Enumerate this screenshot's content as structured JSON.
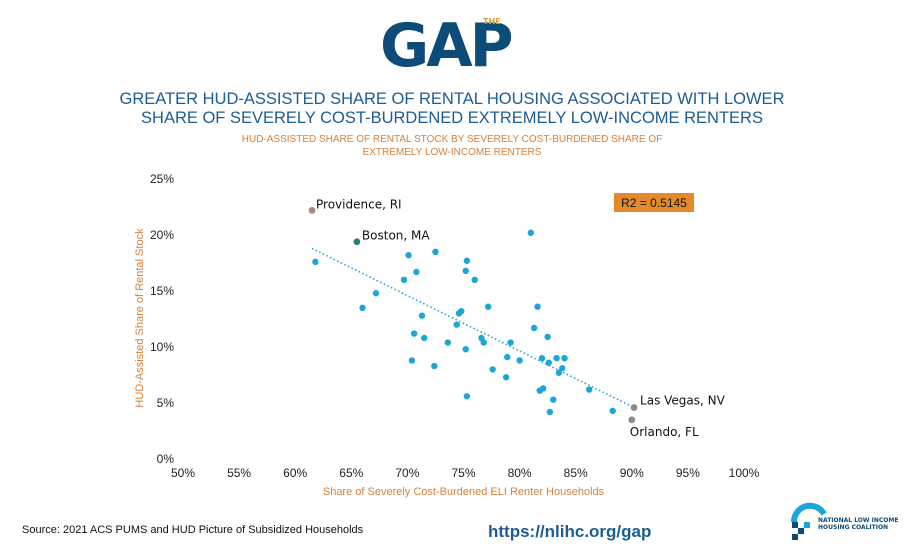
{
  "logo": {
    "text": "GAP",
    "small_text": "THE"
  },
  "header": {
    "title_line1": "GREATER HUD-ASSISTED SHARE OF RENTAL HOUSING ASSOCIATED WITH LOWER",
    "title_line2": "SHARE OF SEVERELY COST-BURDENED EXTREMELY LOW-INCOME RENTERS",
    "subtitle_line1": "HUD-ASSISTED SHARE OF RENTAL STOCK BY SEVERELY COST-BURDENED SHARE OF",
    "subtitle_line2": "EXTREMELY LOW-INCOME RENTERS"
  },
  "footer": {
    "source": "Source: 2021 ACS PUMS and HUD Picture of Subsidized Households",
    "url": "https://nlihc.org/gap",
    "org_line1": "NATIONAL LOW INCOME",
    "org_line2": "HOUSING COALITION"
  },
  "chart_data": {
    "type": "scatter",
    "xlabel": "Share of Severely Cost-Burdened ELI Renter Households",
    "ylabel": "HUD-Assisted Share of Rental Stock",
    "xlim": [
      50,
      100
    ],
    "ylim": [
      0,
      25
    ],
    "x_ticks": [
      "50%",
      "55%",
      "60%",
      "65%",
      "70%",
      "75%",
      "80%",
      "85%",
      "90%",
      "95%",
      "100%"
    ],
    "y_ticks": [
      "0%",
      "5%",
      "10%",
      "15%",
      "20%",
      "25%"
    ],
    "r2_label": "R2 = 0.5145",
    "trendline": {
      "x": [
        61.5,
        90.2
      ],
      "y": [
        18.8,
        4.6
      ]
    },
    "colors": {
      "point": "#1ba6d8",
      "trend": "#1ba6d8",
      "highlight": "#8c8c8c",
      "boston": "#2e7d6e",
      "axis_label": "#d8803a",
      "r2_box": "#e58a2b"
    },
    "labeled_points": [
      {
        "label": "Providence, RI",
        "x": 61.5,
        "y": 22.2,
        "color": "#a08a80"
      },
      {
        "label": "Boston, MA",
        "x": 65.5,
        "y": 19.4,
        "color": "#2e7d6e"
      },
      {
        "label": "Las Vegas, NV",
        "x": 90.2,
        "y": 4.6,
        "color": "#8c8c8c"
      },
      {
        "label": "Orlando, FL",
        "x": 90.0,
        "y": 3.5,
        "color": "#8c8c8c"
      }
    ],
    "points": [
      {
        "x": 61.8,
        "y": 17.6
      },
      {
        "x": 66.0,
        "y": 13.5
      },
      {
        "x": 67.2,
        "y": 14.8
      },
      {
        "x": 69.7,
        "y": 16.0
      },
      {
        "x": 70.1,
        "y": 18.2
      },
      {
        "x": 70.8,
        "y": 16.7
      },
      {
        "x": 72.5,
        "y": 18.5
      },
      {
        "x": 70.6,
        "y": 11.2
      },
      {
        "x": 71.3,
        "y": 12.8
      },
      {
        "x": 71.5,
        "y": 10.8
      },
      {
        "x": 70.4,
        "y": 8.8
      },
      {
        "x": 72.4,
        "y": 8.3
      },
      {
        "x": 73.6,
        "y": 10.4
      },
      {
        "x": 74.4,
        "y": 12.0
      },
      {
        "x": 74.6,
        "y": 13.0
      },
      {
        "x": 74.8,
        "y": 13.2
      },
      {
        "x": 75.2,
        "y": 16.8
      },
      {
        "x": 75.3,
        "y": 17.7
      },
      {
        "x": 76.0,
        "y": 16.0
      },
      {
        "x": 75.2,
        "y": 9.8
      },
      {
        "x": 75.3,
        "y": 5.6
      },
      {
        "x": 76.6,
        "y": 10.8
      },
      {
        "x": 76.8,
        "y": 10.4
      },
      {
        "x": 77.2,
        "y": 13.6
      },
      {
        "x": 77.6,
        "y": 8.0
      },
      {
        "x": 78.8,
        "y": 7.3
      },
      {
        "x": 78.9,
        "y": 9.1
      },
      {
        "x": 79.2,
        "y": 10.4
      },
      {
        "x": 80.0,
        "y": 8.8
      },
      {
        "x": 81.0,
        "y": 20.2
      },
      {
        "x": 81.3,
        "y": 11.7
      },
      {
        "x": 81.6,
        "y": 13.6
      },
      {
        "x": 81.8,
        "y": 6.1
      },
      {
        "x": 82.0,
        "y": 9.0
      },
      {
        "x": 82.1,
        "y": 6.3
      },
      {
        "x": 82.5,
        "y": 10.9
      },
      {
        "x": 82.6,
        "y": 8.6
      },
      {
        "x": 82.7,
        "y": 4.2
      },
      {
        "x": 83.0,
        "y": 5.3
      },
      {
        "x": 83.3,
        "y": 9.0
      },
      {
        "x": 83.5,
        "y": 7.7
      },
      {
        "x": 83.8,
        "y": 8.1
      },
      {
        "x": 84.0,
        "y": 9.0
      },
      {
        "x": 86.2,
        "y": 6.2
      },
      {
        "x": 88.3,
        "y": 4.3
      }
    ]
  }
}
